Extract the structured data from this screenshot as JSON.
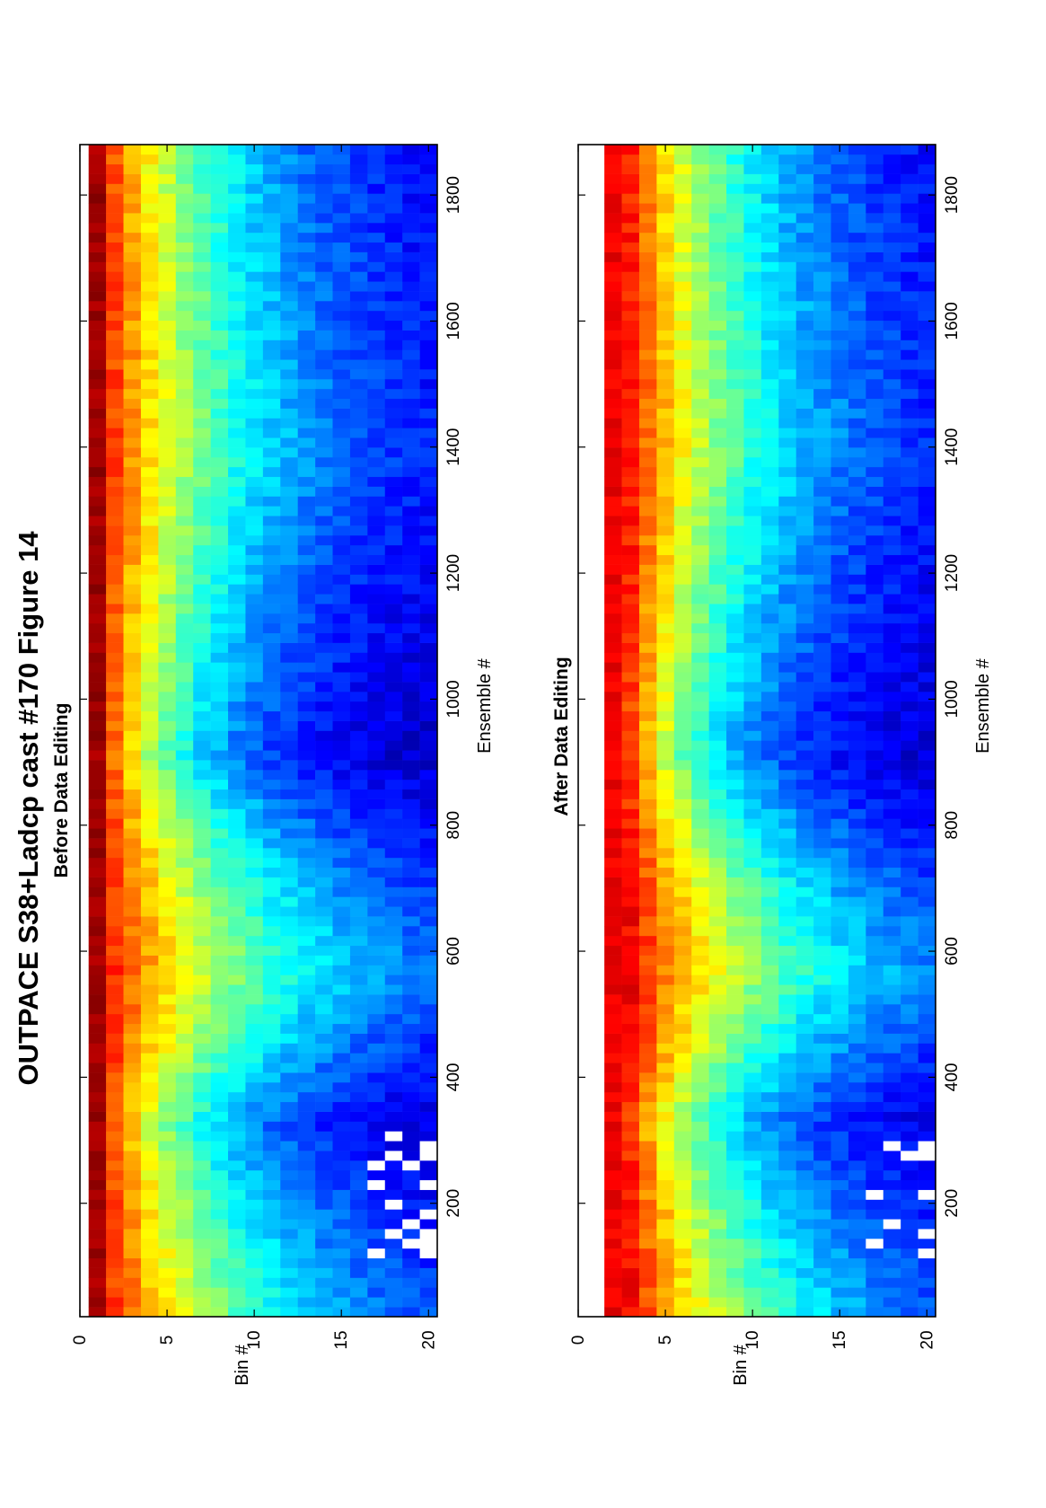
{
  "figure": {
    "title": "OUTPACE S38+Ladcp cast #170  Figure 14"
  },
  "chart_data": [
    {
      "type": "heatmap",
      "title": "Before Data Editing",
      "xlabel": "Ensemble #",
      "ylabel": "Bin #",
      "xlim": [
        20,
        1880
      ],
      "ylim": [
        0,
        20.5
      ],
      "xticks": [
        200,
        400,
        600,
        800,
        1000,
        1200,
        1400,
        1600,
        1800
      ],
      "yticks": [
        0,
        5,
        10,
        15,
        20
      ],
      "bins": [
        1,
        20
      ],
      "first_bin_value": 1.0,
      "colormap": "jet",
      "scale": "relative intensity 0-1",
      "features": {
        "decay_profile_high_range": "bins 1-8 near 0.9 decreasing to 0.05 by bin 18",
        "low_range_segments": [
          [
            320,
            560
          ],
          [
            700,
            900
          ]
        ],
        "white_gaps_ensembles": [
          100,
          320
        ],
        "white_gaps_bins": [
          17,
          20
        ]
      }
    },
    {
      "type": "heatmap",
      "title": "After Data Editing",
      "xlabel": "Ensemble #",
      "ylabel": "Bin #",
      "xlim": [
        20,
        1880
      ],
      "ylim": [
        0,
        20.5
      ],
      "xticks": [
        200,
        400,
        600,
        800,
        1000,
        1200,
        1400,
        1600,
        1800
      ],
      "yticks": [
        0,
        5,
        10,
        15,
        20
      ],
      "bins": [
        2,
        20
      ],
      "first_bin_value": 0.92,
      "colormap": "jet",
      "scale": "relative intensity 0-1",
      "features": {
        "decay_profile_high_range": "bins 2-8 near 0.9 decreasing to 0.05 by bin 18",
        "low_range_segments": [
          [
            320,
            560
          ],
          [
            700,
            900
          ]
        ],
        "white_gaps_ensembles": [
          100,
          300
        ],
        "white_gaps_bins": [
          17,
          20
        ]
      }
    }
  ]
}
